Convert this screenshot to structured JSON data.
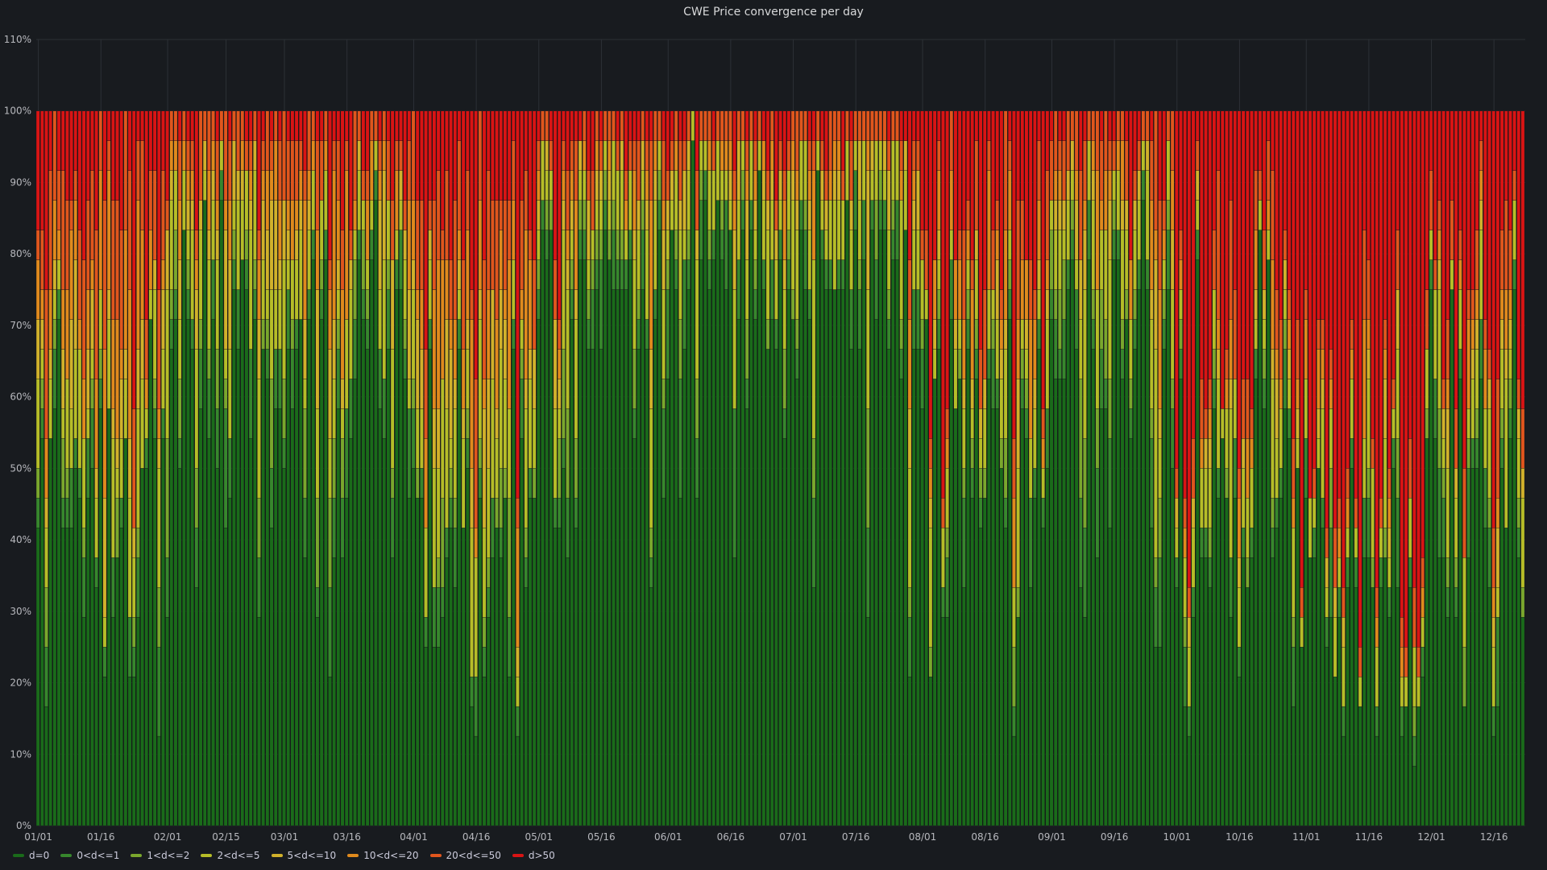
{
  "panel": {
    "title": "CWE Price convergence per day"
  },
  "chart_data": {
    "type": "bar",
    "stacked": true,
    "title": "CWE Price convergence per day",
    "xlabel": "",
    "ylabel": "",
    "ylim": [
      0,
      110
    ],
    "y_unit": "%",
    "y_ticks": [
      "0%",
      "10%",
      "20%",
      "30%",
      "40%",
      "50%",
      "60%",
      "70%",
      "80%",
      "90%",
      "100%",
      "110%"
    ],
    "x_ticks": [
      "01/01",
      "01/16",
      "02/01",
      "02/15",
      "03/01",
      "03/16",
      "04/01",
      "04/16",
      "05/01",
      "05/16",
      "06/01",
      "06/16",
      "07/01",
      "07/16",
      "08/01",
      "08/16",
      "09/01",
      "09/16",
      "10/01",
      "10/16",
      "11/01",
      "11/16",
      "12/01",
      "12/16"
    ],
    "x_tick_day_index": [
      0,
      15,
      31,
      45,
      59,
      74,
      90,
      105,
      120,
      135,
      151,
      166,
      181,
      196,
      212,
      227,
      243,
      258,
      273,
      288,
      304,
      319,
      334,
      349
    ],
    "grid": true,
    "legend_position": "bottom-left",
    "bar_count": 357,
    "hours_per_day": 24,
    "series_names": [
      "d=0",
      "0<d<=1",
      "1<d<=2",
      "2<d<=5",
      "5<d<=10",
      "10<d<=20",
      "20<d<=50",
      "d>50"
    ],
    "series_colors": [
      "#1a6b1a",
      "#37872d",
      "#7aa72d",
      "#b6bd28",
      "#d1b12b",
      "#e08a1d",
      "#e0561d",
      "#d91414"
    ],
    "monthly_composition_percent": [
      {
        "month": "01",
        "values": [
          40,
          4,
          5,
          8,
          8,
          12,
          10,
          13
        ]
      },
      {
        "month": "02",
        "values": [
          58,
          5,
          6,
          9,
          7,
          7,
          4,
          4
        ]
      },
      {
        "month": "03",
        "values": [
          55,
          5,
          6,
          9,
          6,
          8,
          5,
          6
        ]
      },
      {
        "month": "04",
        "values": [
          38,
          4,
          6,
          10,
          8,
          12,
          9,
          13
        ]
      },
      {
        "month": "05",
        "values": [
          68,
          5,
          5,
          6,
          4,
          5,
          3,
          4
        ]
      },
      {
        "month": "06",
        "values": [
          70,
          5,
          5,
          6,
          4,
          4,
          2,
          4
        ]
      },
      {
        "month": "07",
        "values": [
          72,
          4,
          5,
          6,
          4,
          4,
          2,
          3
        ]
      },
      {
        "month": "08",
        "values": [
          48,
          4,
          4,
          6,
          5,
          7,
          6,
          20
        ]
      },
      {
        "month": "09",
        "values": [
          62,
          5,
          6,
          7,
          5,
          6,
          4,
          5
        ]
      },
      {
        "month": "10",
        "values": [
          36,
          3,
          4,
          5,
          4,
          5,
          5,
          38
        ]
      },
      {
        "month": "11",
        "values": [
          30,
          3,
          3,
          4,
          3,
          4,
          4,
          49
        ]
      },
      {
        "month": "12",
        "values": [
          38,
          4,
          5,
          7,
          5,
          6,
          6,
          29
        ]
      }
    ]
  }
}
